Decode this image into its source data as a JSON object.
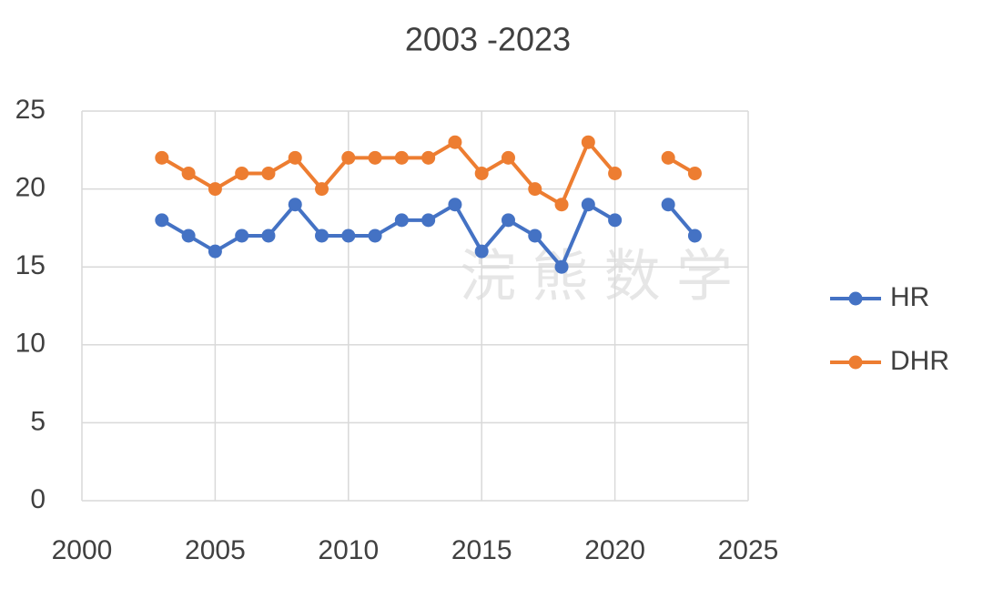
{
  "chart_data": {
    "type": "line",
    "title": "2003 -2023",
    "watermark": "浣 熊 数 学",
    "x": [
      2003,
      2004,
      2005,
      2006,
      2007,
      2008,
      2009,
      2010,
      2011,
      2012,
      2013,
      2014,
      2015,
      2016,
      2017,
      2018,
      2019,
      2020,
      2021,
      2022,
      2023
    ],
    "series": [
      {
        "name": "HR",
        "color": "#4472c4",
        "values": [
          18,
          17,
          16,
          17,
          17,
          19,
          17,
          17,
          17,
          18,
          18,
          19,
          16,
          18,
          17,
          15,
          19,
          18,
          null,
          19,
          17
        ]
      },
      {
        "name": "DHR",
        "color": "#ed7d31",
        "values": [
          22,
          21,
          20,
          21,
          21,
          22,
          20,
          22,
          22,
          22,
          22,
          23,
          21,
          22,
          20,
          19,
          23,
          21,
          null,
          22,
          21
        ]
      }
    ],
    "xlim": [
      2000,
      2025
    ],
    "xticks": [
      2000,
      2005,
      2010,
      2015,
      2020,
      2025
    ],
    "ylim": [
      0,
      25
    ],
    "yticks": [
      0,
      5,
      10,
      15,
      20,
      25
    ],
    "grid": true,
    "legend": "right"
  }
}
